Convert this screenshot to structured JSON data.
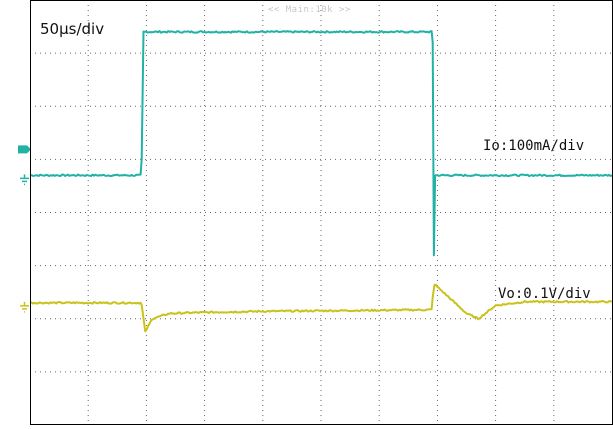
{
  "timebase_label": "50µs/div",
  "top_marker": "<< Main:10k >>",
  "colors": {
    "ch1": "#20b2a5",
    "ch2": "#c8c21a",
    "grid": "#666666",
    "frame": "#000000"
  },
  "icons": {
    "trigger_marker": "trigger-arrow-icon",
    "ground_marker": "ground-icon"
  },
  "chart_data": {
    "type": "line",
    "title": "",
    "xlabel": "50µs/div",
    "ylabel": "",
    "x_units": "div",
    "y_units": "div",
    "xlim": [
      0,
      10
    ],
    "ylim": [
      0,
      8
    ],
    "grid": true,
    "series": [
      {
        "name": "Io:100mA/div",
        "color": "#20b2a5",
        "x": [
          0.0,
          1.9,
          1.92,
          1.95,
          6.9,
          6.92,
          6.94,
          6.96,
          7.0,
          10.0
        ],
        "y": [
          4.7,
          4.7,
          5.0,
          7.4,
          7.4,
          7.2,
          3.2,
          4.7,
          4.7,
          4.7
        ]
      },
      {
        "name": "Vo:0.1V/div",
        "color": "#c8c21a",
        "x": [
          0.0,
          1.9,
          1.92,
          1.98,
          2.1,
          2.4,
          3.0,
          4.0,
          5.0,
          6.0,
          6.9,
          6.92,
          6.95,
          7.1,
          7.3,
          7.5,
          7.7,
          7.8,
          8.0,
          8.5,
          10.0
        ],
        "y": [
          2.3,
          2.3,
          2.25,
          1.75,
          2.0,
          2.1,
          2.12,
          2.14,
          2.15,
          2.16,
          2.17,
          2.4,
          2.65,
          2.5,
          2.3,
          2.1,
          2.0,
          2.08,
          2.25,
          2.32,
          2.32
        ]
      }
    ]
  }
}
